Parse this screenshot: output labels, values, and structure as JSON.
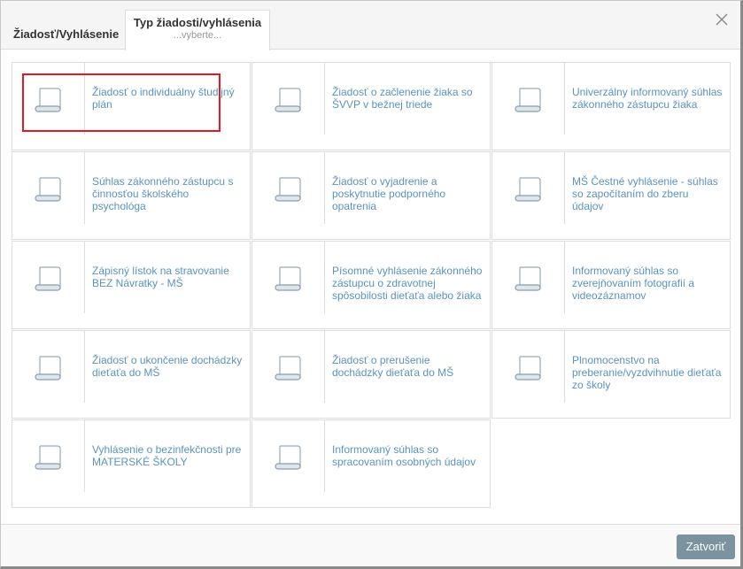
{
  "header": {
    "title": "Žiadosť/Vyhlásenie",
    "tab_label": "Typ žiadosti/vyhlásenia",
    "tab_sublabel": "...vyberte..."
  },
  "tiles": [
    {
      "label": "Žiadosť o individuálny študijný plán",
      "selected": true
    },
    {
      "label": "Žiadosť o začlenenie žiaka so ŠVVP v bežnej triede"
    },
    {
      "label": "Univerzálny informovaný súhlas zákonného zástupcu žiaka"
    },
    {
      "label": "Súhlas zákonného zástupcu s činnosťou školského psychológa"
    },
    {
      "label": "Žiadosť o vyjadrenie a poskytnutie podporného opatrenia"
    },
    {
      "label": "MŠ Čestné vyhlásenie - súhlas so započítaním do zberu údajov"
    },
    {
      "label": "Zápisný lístok na stravovanie BEZ Návratky - MŠ"
    },
    {
      "label": "Písomné vyhlásenie zákonného zástupcu o zdravotnej spôsobilosti dieťaťa alebo žiaka"
    },
    {
      "label": "Informovaný súhlas so zverejňovaním fotografií a videozáznamov"
    },
    {
      "label": "Žiadosť o ukončenie dochádzky dieťaťa do MŠ"
    },
    {
      "label": "Žiadosť o prerušenie dochádzky dieťaťa do MŠ"
    },
    {
      "label": "Plnomocenstvo na preberanie/vyzdvihnutie dieťaťa zo školy"
    },
    {
      "label": "Vyhlásenie o bezinfekčnosti pre MATERSKÉ ŠKOLY"
    },
    {
      "label": "Informovaný súhlas so spracovaním osobných údajov"
    }
  ],
  "icons": {
    "tile": "document-scroll-icon",
    "close": "close-icon"
  },
  "colors": {
    "link": "#5b93bd",
    "button": "#7a939e",
    "highlight": "#e01b24"
  },
  "footer": {
    "close_label": "Zatvoriť"
  }
}
